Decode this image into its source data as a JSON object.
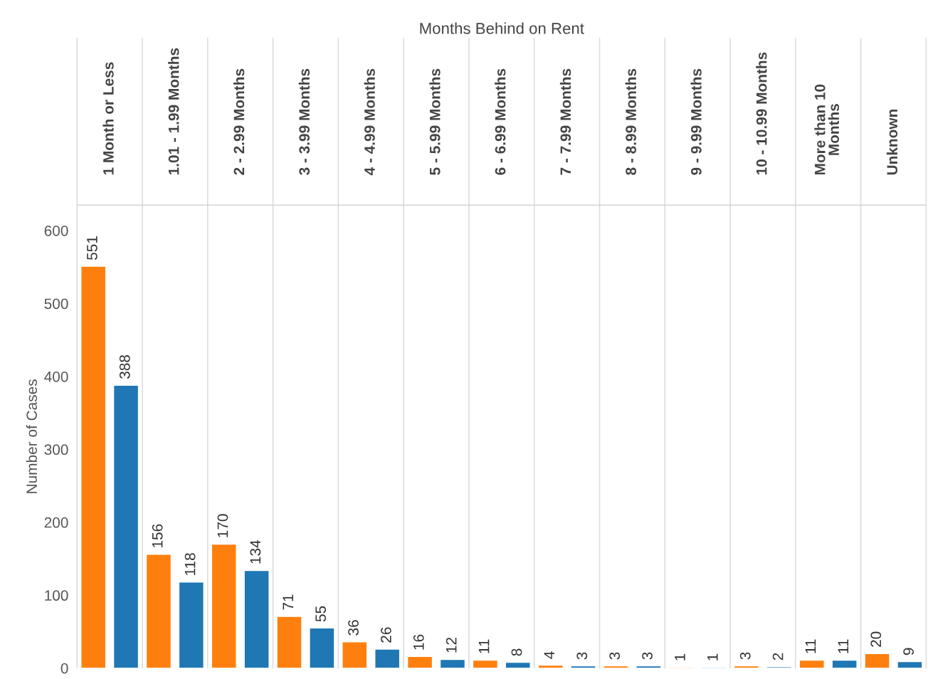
{
  "chart_data": {
    "type": "bar",
    "xlabel": "Months Behind on Rent",
    "ylabel": "Number of Cases",
    "categories": [
      "1 Month or Less",
      "1.01 - 1.99 Months",
      "2 - 2.99 Months",
      "3 - 3.99 Months",
      "4 - 4.99 Months",
      "5 - 5.99 Months",
      "6 - 6.99 Months",
      "7 - 7.99 Months",
      "8 - 8.99 Months",
      "9 - 9.99 Months",
      "10 - 10.99 Months",
      "More than 10\nMonths",
      "Unknown"
    ],
    "series": [
      {
        "color": "#ff7f0e",
        "values": [
          551,
          156,
          170,
          71,
          36,
          16,
          11,
          4,
          3,
          1,
          3,
          11,
          20
        ]
      },
      {
        "color": "#1f77b4",
        "values": [
          388,
          118,
          134,
          55,
          26,
          12,
          8,
          3,
          3,
          1,
          2,
          11,
          9
        ]
      }
    ],
    "ylim": [
      0,
      635
    ],
    "yticks": [
      0,
      100,
      200,
      300,
      400,
      500,
      600
    ],
    "data_labels": true,
    "legend": false
  }
}
